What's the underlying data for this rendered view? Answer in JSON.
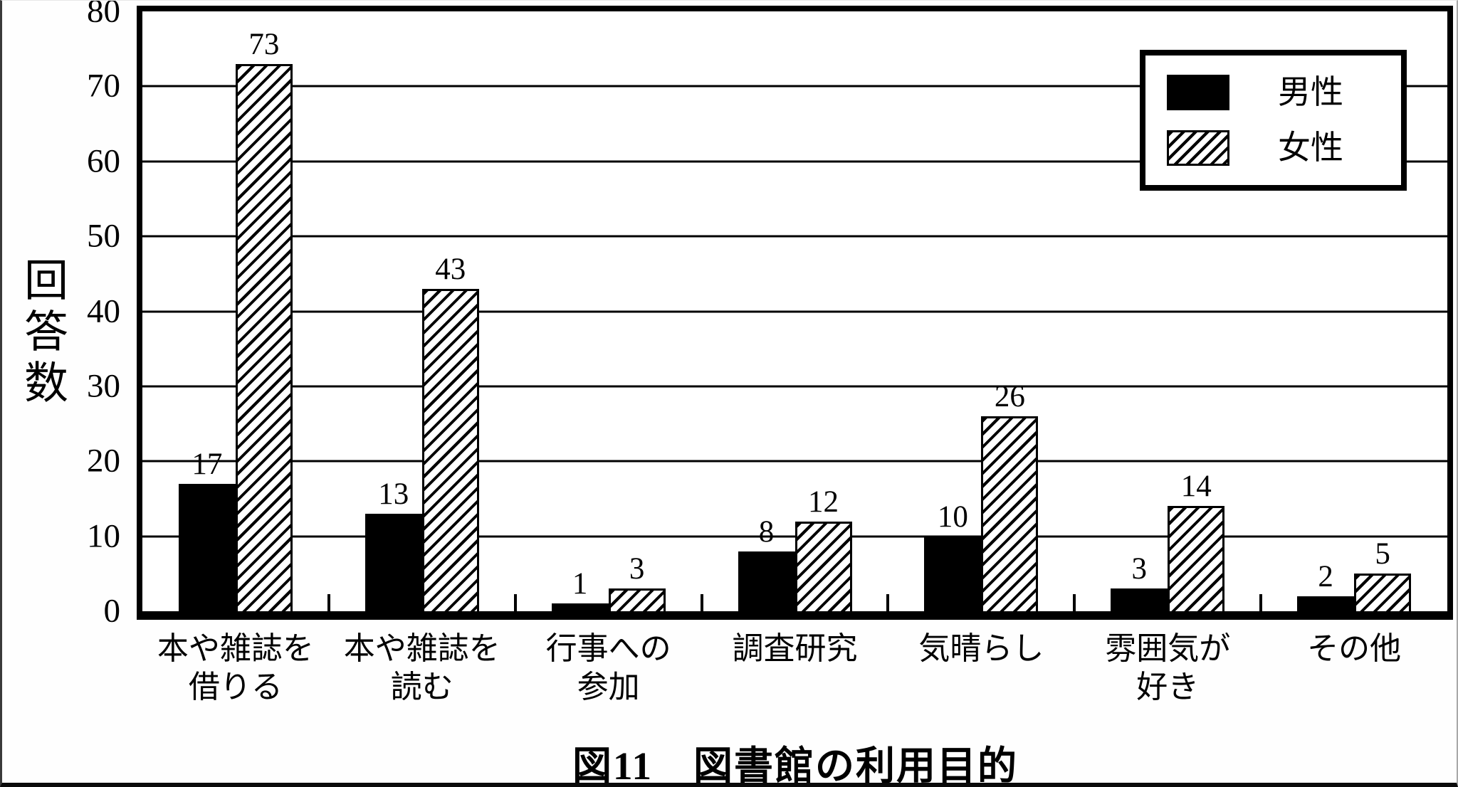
{
  "chart_data": {
    "type": "bar",
    "title": "図11　図書館の利用目的",
    "ylabel": "回答数",
    "xlabel": "",
    "ylim": [
      0,
      80
    ],
    "yticks": [
      0,
      10,
      20,
      30,
      40,
      50,
      60,
      70,
      80
    ],
    "grid": true,
    "legend_position": "top-right",
    "categories": [
      {
        "line1": "本や雑誌を",
        "line2": "借りる"
      },
      {
        "line1": "本や雑誌を",
        "line2": "読む"
      },
      {
        "line1": "行事への",
        "line2": "参加"
      },
      {
        "line1": "調査研究",
        "line2": ""
      },
      {
        "line1": "気晴らし",
        "line2": ""
      },
      {
        "line1": "雰囲気が",
        "line2": "好き"
      },
      {
        "line1": "その他",
        "line2": ""
      }
    ],
    "series": [
      {
        "name": "男性",
        "fill": "solid",
        "color": "#000000",
        "values": [
          17,
          13,
          1,
          8,
          10,
          3,
          2
        ]
      },
      {
        "name": "女性",
        "fill": "hatch",
        "color": "#000000",
        "values": [
          73,
          43,
          3,
          12,
          26,
          14,
          5
        ]
      }
    ]
  },
  "colors": {
    "ink": "#000000",
    "background": "#ffffff"
  }
}
